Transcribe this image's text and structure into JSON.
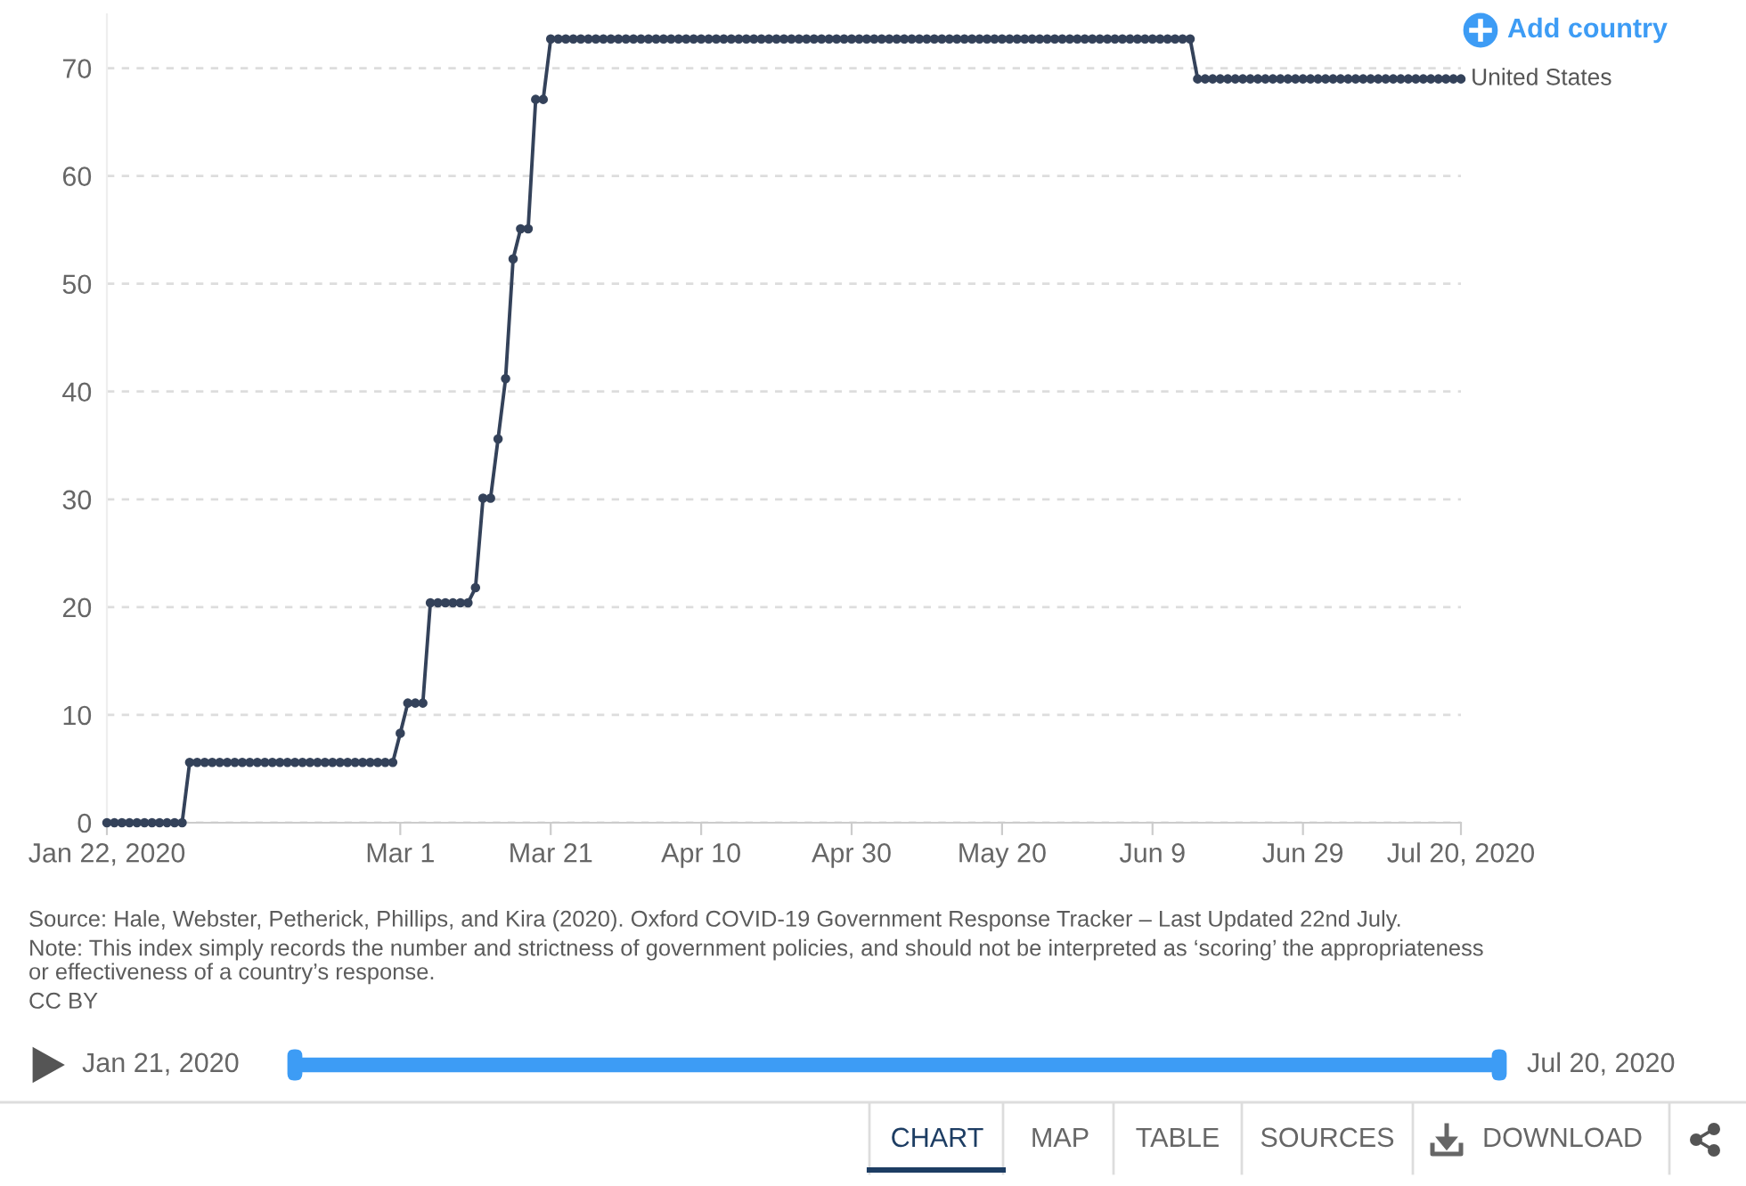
{
  "chart_data": {
    "type": "line",
    "xlim": [
      "2020-01-22",
      "2020-07-20"
    ],
    "xticks": [
      {
        "value": "2020-01-22",
        "label": "Jan 22, 2020"
      },
      {
        "value": "2020-03-01",
        "label": "Mar 1"
      },
      {
        "value": "2020-03-21",
        "label": "Mar 21"
      },
      {
        "value": "2020-04-10",
        "label": "Apr 10"
      },
      {
        "value": "2020-04-30",
        "label": "Apr 30"
      },
      {
        "value": "2020-05-20",
        "label": "May 20"
      },
      {
        "value": "2020-06-09",
        "label": "Jun 9"
      },
      {
        "value": "2020-06-29",
        "label": "Jun 29"
      },
      {
        "value": "2020-07-20",
        "label": "Jul 20, 2020"
      }
    ],
    "ylim": [
      0,
      75
    ],
    "yticks": [
      0,
      10,
      20,
      30,
      40,
      50,
      60,
      70
    ],
    "grid": "y",
    "marker": "circle",
    "line_style": "solid",
    "series": [
      {
        "name": "United States",
        "color": "#34425a",
        "x": [
          "2020-01-22",
          "2020-01-23",
          "2020-01-24",
          "2020-01-25",
          "2020-01-26",
          "2020-01-27",
          "2020-01-28",
          "2020-01-29",
          "2020-01-30",
          "2020-01-31",
          "2020-02-01",
          "2020-02-02",
          "2020-02-03",
          "2020-02-04",
          "2020-02-05",
          "2020-02-06",
          "2020-02-07",
          "2020-02-08",
          "2020-02-09",
          "2020-02-10",
          "2020-02-11",
          "2020-02-12",
          "2020-02-13",
          "2020-02-14",
          "2020-02-15",
          "2020-02-16",
          "2020-02-17",
          "2020-02-18",
          "2020-02-19",
          "2020-02-20",
          "2020-02-21",
          "2020-02-22",
          "2020-02-23",
          "2020-02-24",
          "2020-02-25",
          "2020-02-26",
          "2020-02-27",
          "2020-02-28",
          "2020-02-29",
          "2020-03-01",
          "2020-03-02",
          "2020-03-03",
          "2020-03-04",
          "2020-03-05",
          "2020-03-06",
          "2020-03-07",
          "2020-03-08",
          "2020-03-09",
          "2020-03-10",
          "2020-03-11",
          "2020-03-12",
          "2020-03-13",
          "2020-03-14",
          "2020-03-15",
          "2020-03-16",
          "2020-03-17",
          "2020-03-18",
          "2020-03-19",
          "2020-03-20",
          "2020-03-21",
          "2020-03-22",
          "2020-03-23",
          "2020-03-24",
          "2020-03-25",
          "2020-03-26",
          "2020-03-27",
          "2020-03-28",
          "2020-03-29",
          "2020-03-30",
          "2020-03-31",
          "2020-04-01",
          "2020-04-02",
          "2020-04-03",
          "2020-04-04",
          "2020-04-05",
          "2020-04-06",
          "2020-04-07",
          "2020-04-08",
          "2020-04-09",
          "2020-04-10",
          "2020-04-11",
          "2020-04-12",
          "2020-04-13",
          "2020-04-14",
          "2020-04-15",
          "2020-04-16",
          "2020-04-17",
          "2020-04-18",
          "2020-04-19",
          "2020-04-20",
          "2020-04-21",
          "2020-04-22",
          "2020-04-23",
          "2020-04-24",
          "2020-04-25",
          "2020-04-26",
          "2020-04-27",
          "2020-04-28",
          "2020-04-29",
          "2020-04-30",
          "2020-05-01",
          "2020-05-02",
          "2020-05-03",
          "2020-05-04",
          "2020-05-05",
          "2020-05-06",
          "2020-05-07",
          "2020-05-08",
          "2020-05-09",
          "2020-05-10",
          "2020-05-11",
          "2020-05-12",
          "2020-05-13",
          "2020-05-14",
          "2020-05-15",
          "2020-05-16",
          "2020-05-17",
          "2020-05-18",
          "2020-05-19",
          "2020-05-20",
          "2020-05-21",
          "2020-05-22",
          "2020-05-23",
          "2020-05-24",
          "2020-05-25",
          "2020-05-26",
          "2020-05-27",
          "2020-05-28",
          "2020-05-29",
          "2020-05-30",
          "2020-05-31",
          "2020-06-01",
          "2020-06-02",
          "2020-06-03",
          "2020-06-04",
          "2020-06-05",
          "2020-06-06",
          "2020-06-07",
          "2020-06-08",
          "2020-06-09",
          "2020-06-10",
          "2020-06-11",
          "2020-06-12",
          "2020-06-13",
          "2020-06-14",
          "2020-06-15",
          "2020-06-16",
          "2020-06-17",
          "2020-06-18",
          "2020-06-19",
          "2020-06-20",
          "2020-06-21",
          "2020-06-22",
          "2020-06-23",
          "2020-06-24",
          "2020-06-25",
          "2020-06-26",
          "2020-06-27",
          "2020-06-28",
          "2020-06-29",
          "2020-06-30",
          "2020-07-01",
          "2020-07-02",
          "2020-07-03",
          "2020-07-04",
          "2020-07-05",
          "2020-07-06",
          "2020-07-07",
          "2020-07-08",
          "2020-07-09",
          "2020-07-10",
          "2020-07-11",
          "2020-07-12",
          "2020-07-13",
          "2020-07-14",
          "2020-07-15",
          "2020-07-16",
          "2020-07-17",
          "2020-07-18",
          "2020-07-19",
          "2020-07-20"
        ],
        "values": [
          0,
          0,
          0,
          0,
          0,
          0,
          0,
          0,
          0,
          0,
          0,
          5.6,
          5.6,
          5.6,
          5.6,
          5.6,
          5.6,
          5.6,
          5.6,
          5.6,
          5.6,
          5.6,
          5.6,
          5.6,
          5.6,
          5.6,
          5.6,
          5.6,
          5.6,
          5.6,
          5.6,
          5.6,
          5.6,
          5.6,
          5.6,
          5.6,
          5.6,
          5.6,
          5.6,
          8.3,
          11.1,
          11.1,
          11.1,
          20.4,
          20.4,
          20.4,
          20.4,
          20.4,
          20.4,
          21.8,
          30.1,
          30.1,
          35.6,
          41.2,
          52.3,
          55.1,
          55.1,
          67.1,
          67.1,
          72.7,
          72.7,
          72.7,
          72.7,
          72.7,
          72.7,
          72.7,
          72.7,
          72.7,
          72.7,
          72.7,
          72.7,
          72.7,
          72.7,
          72.7,
          72.7,
          72.7,
          72.7,
          72.7,
          72.7,
          72.7,
          72.7,
          72.7,
          72.7,
          72.7,
          72.7,
          72.7,
          72.7,
          72.7,
          72.7,
          72.7,
          72.7,
          72.7,
          72.7,
          72.7,
          72.7,
          72.7,
          72.7,
          72.7,
          72.7,
          72.7,
          72.7,
          72.7,
          72.7,
          72.7,
          72.7,
          72.7,
          72.7,
          72.7,
          72.7,
          72.7,
          72.7,
          72.7,
          72.7,
          72.7,
          72.7,
          72.7,
          72.7,
          72.7,
          72.7,
          72.7,
          72.7,
          72.7,
          72.7,
          72.7,
          72.7,
          72.7,
          72.7,
          72.7,
          72.7,
          72.7,
          72.7,
          72.7,
          72.7,
          72.7,
          72.7,
          72.7,
          72.7,
          72.7,
          72.7,
          72.7,
          72.7,
          72.7,
          72.7,
          72.7,
          72.7,
          69.0,
          69.0,
          69.0,
          69.0,
          69.0,
          69.0,
          69.0,
          69.0,
          69.0,
          69.0,
          69.0,
          69.0,
          69.0,
          69.0,
          69.0,
          69.0,
          69.0,
          69.0,
          69.0,
          69.0,
          69.0,
          69.0,
          69.0,
          69.0,
          69.0,
          69.0,
          69.0,
          69.0,
          69.0,
          69.0,
          69.0,
          69.0,
          69.0,
          69.0,
          69.0,
          69.0
        ]
      }
    ],
    "annotations": [
      "Source: Hale, Webster, Petherick, Phillips, and Kira (2020). Oxford COVID-19 Government Response Tracker – Last Updated 22nd July.",
      "Note: This index simply records the number and strictness of government policies, and should not be interpreted as ‘scoring’ the appropriateness\nor effectiveness of a country’s response.",
      "CC BY",
      "Add country",
      "Jan 21, 2020",
      "Jul 20, 2020",
      "CHART",
      "MAP",
      "TABLE",
      "SOURCES",
      "DOWNLOAD"
    ]
  }
}
